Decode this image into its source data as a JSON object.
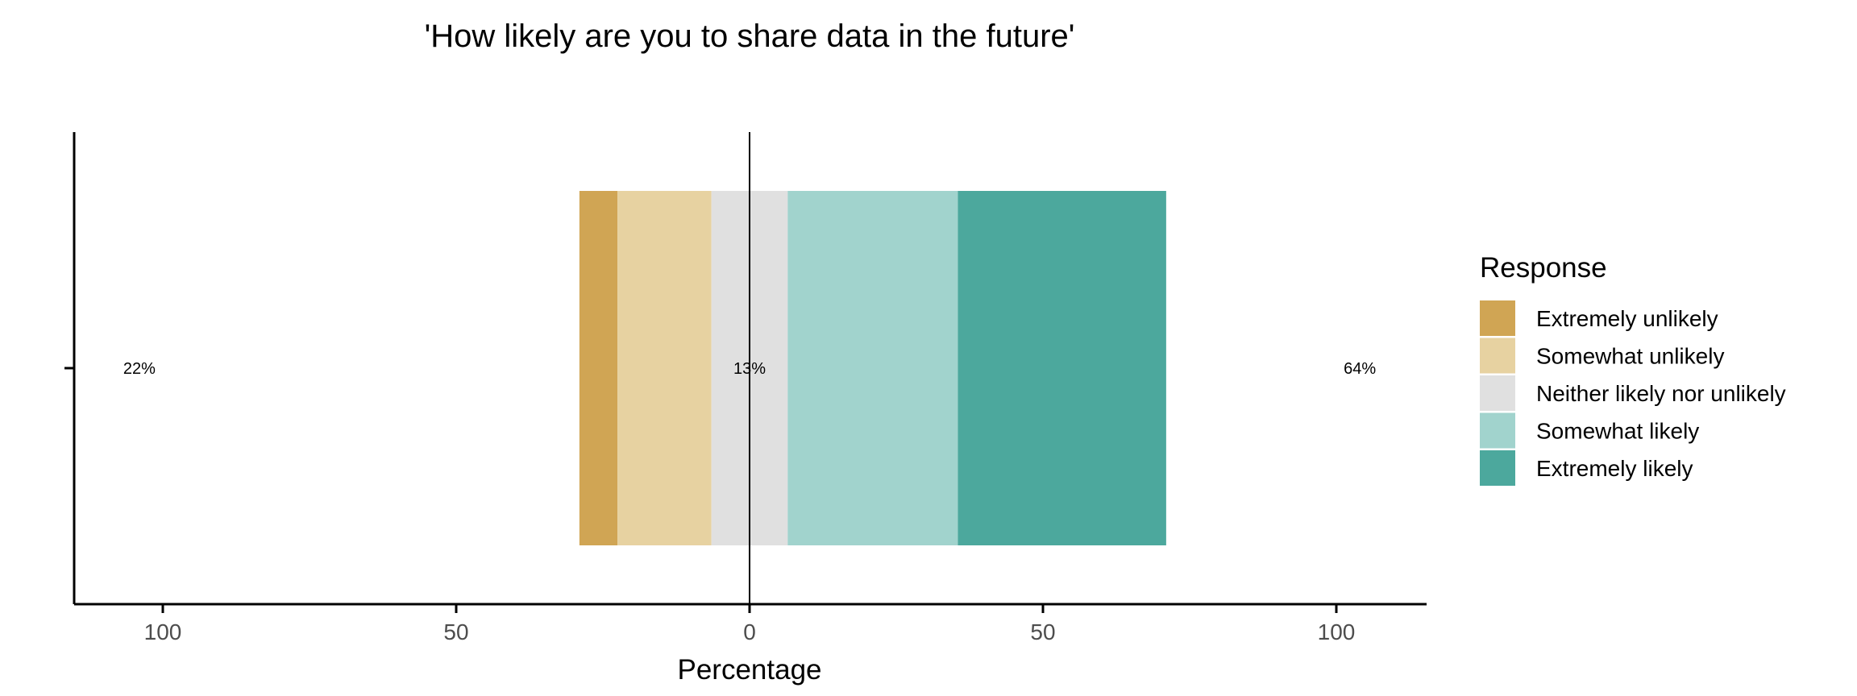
{
  "chart_data": {
    "type": "bar",
    "orientation": "horizontal",
    "stacked": "diverging",
    "title": "'How likely are you to share data in the future'",
    "xlabel": "Percentage",
    "ylabel": "",
    "xlim": [
      -100,
      100
    ],
    "x_ticks": [
      -100,
      -50,
      0,
      50,
      100
    ],
    "x_tick_labels": [
      "100",
      "50",
      "0",
      "50",
      "100"
    ],
    "categories": [
      ""
    ],
    "series": [
      {
        "name": "Extremely unlikely",
        "color": "#d0a554",
        "values": [
          6.5
        ]
      },
      {
        "name": "Somewhat unlikely",
        "color": "#e7d2a1",
        "values": [
          16
        ]
      },
      {
        "name": "Neither likely nor unlikely",
        "color": "#e0e0e0",
        "values": [
          13
        ]
      },
      {
        "name": "Somewhat likely",
        "color": "#a1d3cd",
        "values": [
          29
        ]
      },
      {
        "name": "Extremely likely",
        "color": "#4ca89d",
        "values": [
          35.5
        ]
      }
    ],
    "summary_labels": {
      "low": "22%",
      "neutral": "13%",
      "high": "64%"
    },
    "legend": {
      "title": "Response",
      "position": "right"
    },
    "grid": false
  }
}
